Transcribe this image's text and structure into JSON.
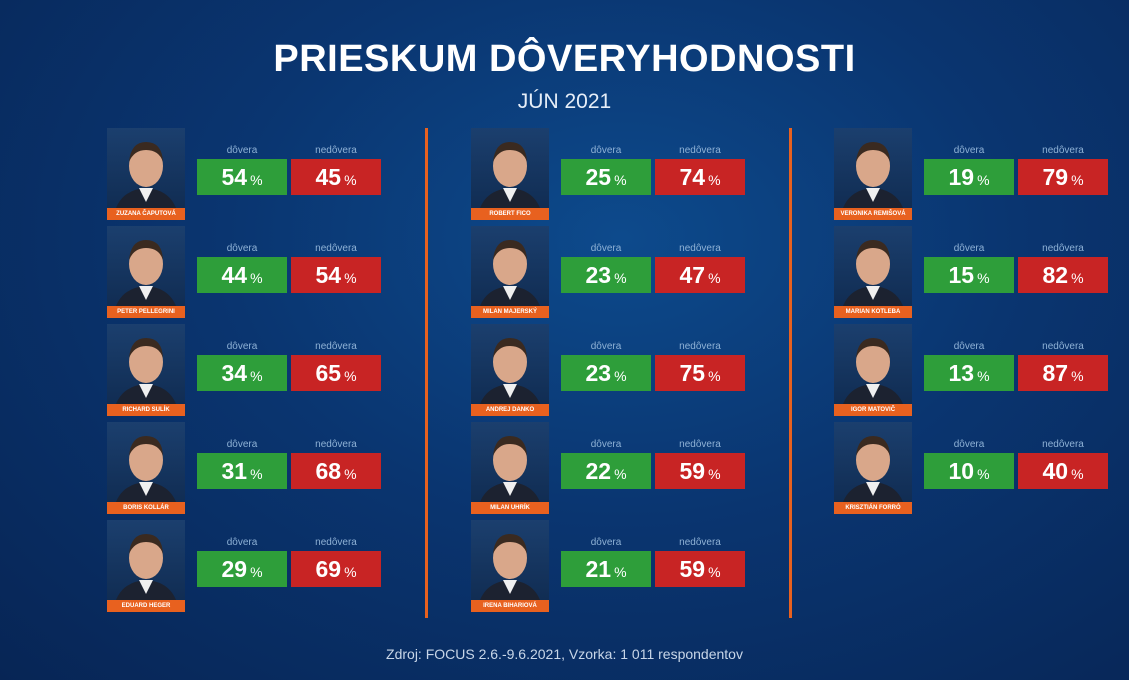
{
  "header": {
    "title": "PRIESKUM DÔVERYHODNOSTI",
    "subtitle": "JÚN 2021"
  },
  "labels": {
    "trust": "dôvera",
    "distrust": "nedôvera",
    "percent": "%"
  },
  "source": "Zdroj: FOCUS 2.6.-9.6.2021, Vzorka: 1 011 respondentov",
  "colors": {
    "trust": "#2e9e3a",
    "distrust": "#c82424",
    "accent": "#e8611f",
    "background": "#0a3570"
  },
  "chart_data": {
    "type": "table",
    "title": "PRIESKUM DÔVERYHODNOSTI",
    "subtitle": "JÚN 2021",
    "columns": [
      "dôvera",
      "nedôvera"
    ],
    "unit": "%",
    "rows": [
      {
        "name": "ZUZANA ČAPUTOVÁ",
        "trust": 54,
        "distrust": 45
      },
      {
        "name": "PETER PELLEGRINI",
        "trust": 44,
        "distrust": 54
      },
      {
        "name": "RICHARD SULÍK",
        "trust": 34,
        "distrust": 65
      },
      {
        "name": "BORIS KOLLÁR",
        "trust": 31,
        "distrust": 68
      },
      {
        "name": "EDUARD HEGER",
        "trust": 29,
        "distrust": 69
      },
      {
        "name": "ROBERT FICO",
        "trust": 25,
        "distrust": 74
      },
      {
        "name": "MILAN MAJERSKÝ",
        "trust": 23,
        "distrust": 47
      },
      {
        "name": "ANDREJ DANKO",
        "trust": 23,
        "distrust": 75
      },
      {
        "name": "MILAN UHRÍK",
        "trust": 22,
        "distrust": 59
      },
      {
        "name": "IRENA BIHARIOVÁ",
        "trust": 21,
        "distrust": 59
      },
      {
        "name": "VERONIKA REMIŠOVÁ",
        "trust": 19,
        "distrust": 79
      },
      {
        "name": "MARIAN KOTLEBA",
        "trust": 15,
        "distrust": 82
      },
      {
        "name": "IGOR MATOVIČ",
        "trust": 13,
        "distrust": 87
      },
      {
        "name": "KRISZTIÁN FORRÓ",
        "trust": 10,
        "distrust": 40
      }
    ]
  }
}
